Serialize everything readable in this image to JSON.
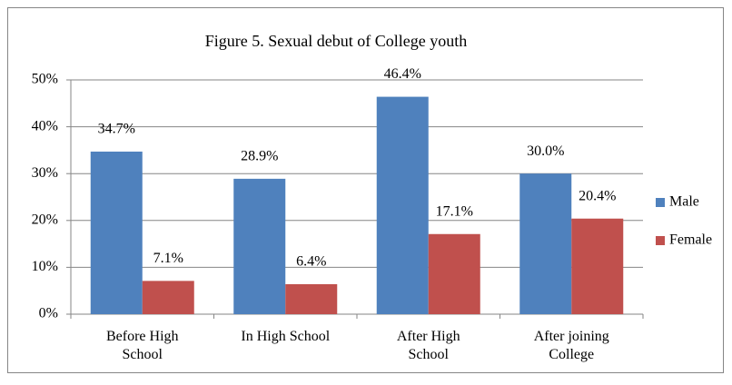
{
  "chart_data": {
    "type": "bar",
    "title": "Figure 5. Sexual debut of College youth",
    "categories": [
      "Before High School",
      "In High School",
      "After High School",
      "After joining College"
    ],
    "series": [
      {
        "name": "Male",
        "color": "#4f81bd",
        "values": [
          34.7,
          28.9,
          46.4,
          30.0
        ],
        "value_labels": [
          "34.7%",
          "28.9%",
          "46.4%",
          "30.0%"
        ]
      },
      {
        "name": "Female",
        "color": "#c0504d",
        "values": [
          7.1,
          6.4,
          17.1,
          20.4
        ],
        "value_labels": [
          "7.1%",
          "6.4%",
          "17.1%",
          "20.4%"
        ]
      }
    ],
    "ylim": [
      0,
      50
    ],
    "yticks": [
      {
        "value": 0,
        "label": "0%"
      },
      {
        "value": 10,
        "label": "10%"
      },
      {
        "value": 20,
        "label": "20%"
      },
      {
        "value": 30,
        "label": "30%"
      },
      {
        "value": 40,
        "label": "40%"
      },
      {
        "value": 50,
        "label": "50%"
      }
    ],
    "grid": true,
    "legend": "right"
  }
}
